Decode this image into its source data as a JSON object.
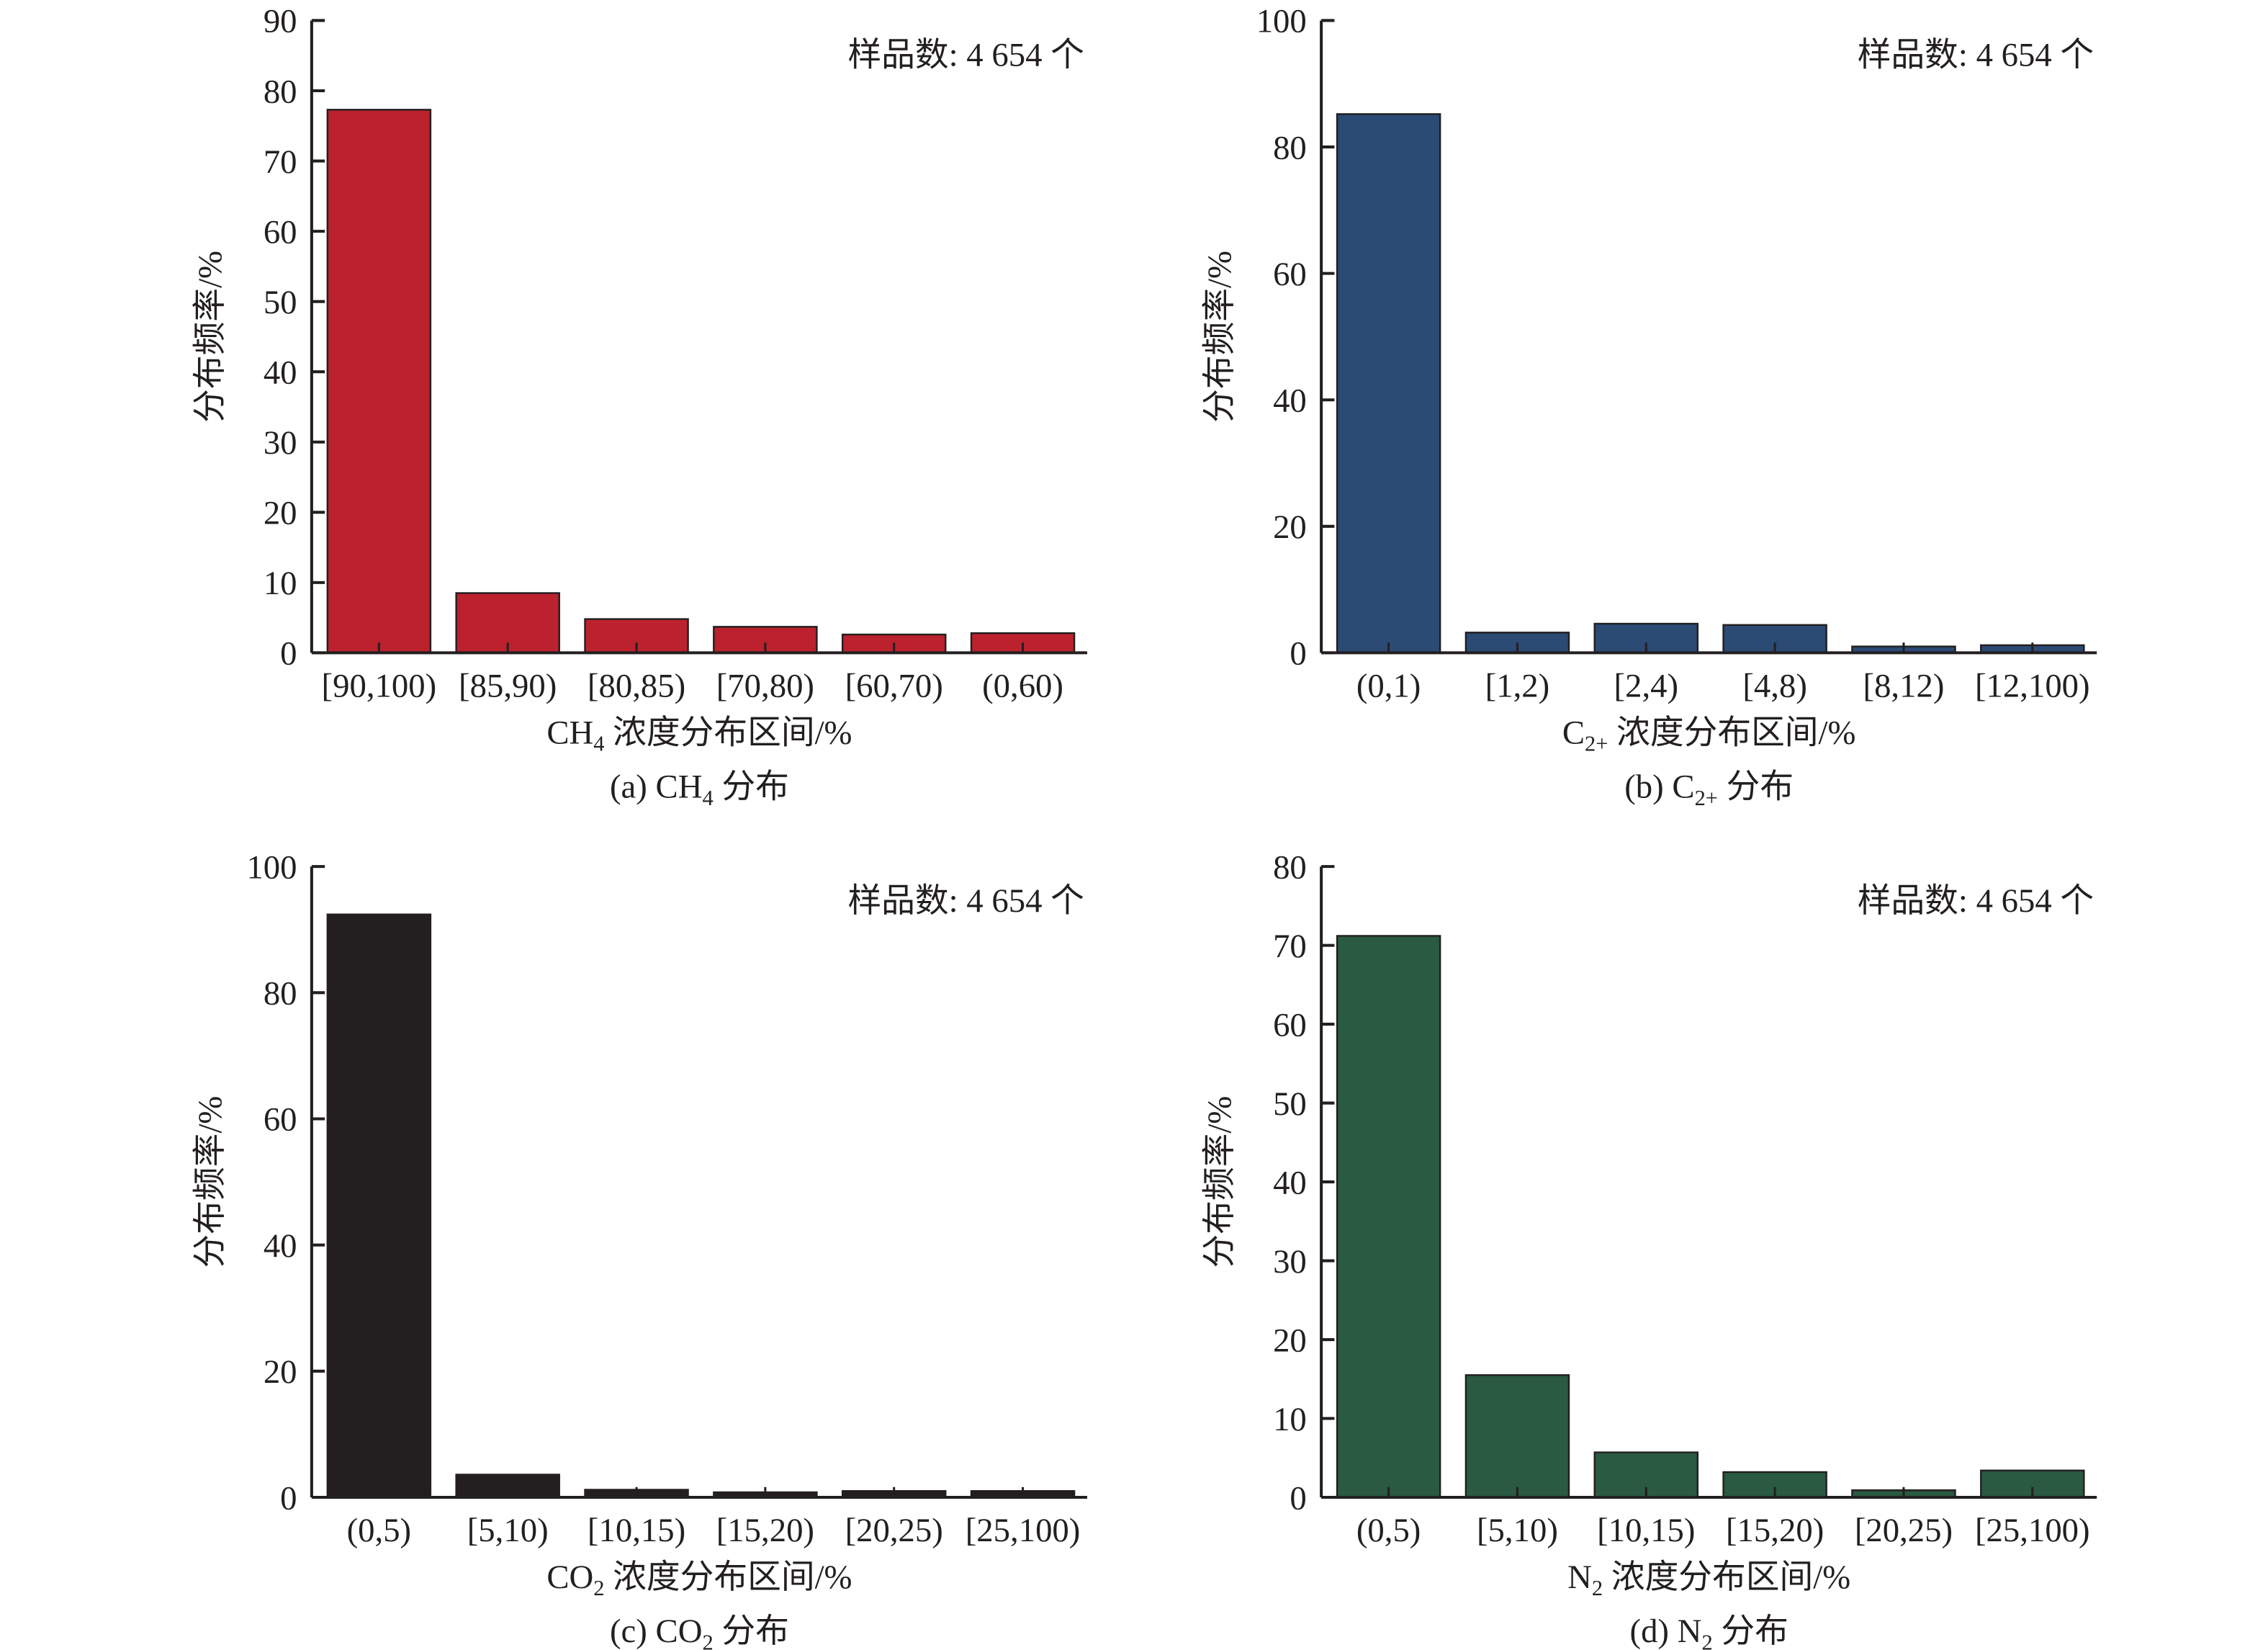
{
  "chart_data": [
    {
      "type": "bar",
      "panel": "a",
      "caption": {
        "prefix": "(a) CH",
        "sub": "4",
        "suffix": " 分布"
      },
      "xlabel": {
        "prefix": "CH",
        "sub": "4",
        "suffix": " 浓度分布区间/%"
      },
      "ylabel": "分布频率/%",
      "annotation": "样品数: 4 654 个",
      "categories": [
        "[90,100)",
        "[85,90)",
        "[80,85)",
        "[70,80)",
        "[60,70)",
        "(0,60)"
      ],
      "values": [
        77.3,
        8.5,
        4.8,
        3.7,
        2.6,
        2.8
      ],
      "ylim": [
        0,
        90
      ],
      "yticks": [
        0,
        10,
        20,
        30,
        40,
        50,
        60,
        70,
        80,
        90
      ],
      "color": "#bb222e"
    },
    {
      "type": "bar",
      "panel": "b",
      "caption": {
        "prefix": "(b) C",
        "sub": "2+",
        "suffix": " 分布"
      },
      "xlabel": {
        "prefix": "C",
        "sub": "2+",
        "suffix": " 浓度分布区间/%"
      },
      "ylabel": "分布频率/%",
      "annotation": "样品数: 4 654 个",
      "categories": [
        "(0,1)",
        "[1,2)",
        "[2,4)",
        "[4,8)",
        "[8,12)",
        "[12,100)"
      ],
      "values": [
        85.2,
        3.2,
        4.6,
        4.4,
        1.0,
        1.2
      ],
      "ylim": [
        0,
        100
      ],
      "yticks": [
        0,
        20,
        40,
        60,
        80,
        100
      ],
      "color": "#2b4a74"
    },
    {
      "type": "bar",
      "panel": "c",
      "caption": {
        "prefix": "(c) CO",
        "sub": "2",
        "suffix": " 分布"
      },
      "xlabel": {
        "prefix": "CO",
        "sub": "2",
        "suffix": " 浓度分布区间/%"
      },
      "ylabel": "分布频率/%",
      "annotation": "样品数: 4 654 个",
      "categories": [
        "(0,5)",
        "[5,10)",
        "[10,15)",
        "[15,20)",
        "[20,25)",
        "[25,100)"
      ],
      "values": [
        92.4,
        3.6,
        1.2,
        0.8,
        1.0,
        1.0
      ],
      "ylim": [
        0,
        100
      ],
      "yticks": [
        0,
        20,
        40,
        60,
        80,
        100
      ],
      "color": "#231f20"
    },
    {
      "type": "bar",
      "panel": "d",
      "caption": {
        "prefix": "(d) N",
        "sub": "2",
        "suffix": " 分布"
      },
      "xlabel": {
        "prefix": "N",
        "sub": "2",
        "suffix": " 浓度分布区间/%"
      },
      "ylabel": "分布频率/%",
      "annotation": "样品数: 4 654 个",
      "categories": [
        "(0,5)",
        "[5,10)",
        "[10,15)",
        "[15,20)",
        "[20,25)",
        "[25,100)"
      ],
      "values": [
        71.2,
        15.5,
        5.7,
        3.2,
        0.9,
        3.4
      ],
      "ylim": [
        0,
        80
      ],
      "yticks": [
        0,
        10,
        20,
        30,
        40,
        50,
        60,
        70,
        80
      ],
      "color": "#2a5a41"
    }
  ]
}
